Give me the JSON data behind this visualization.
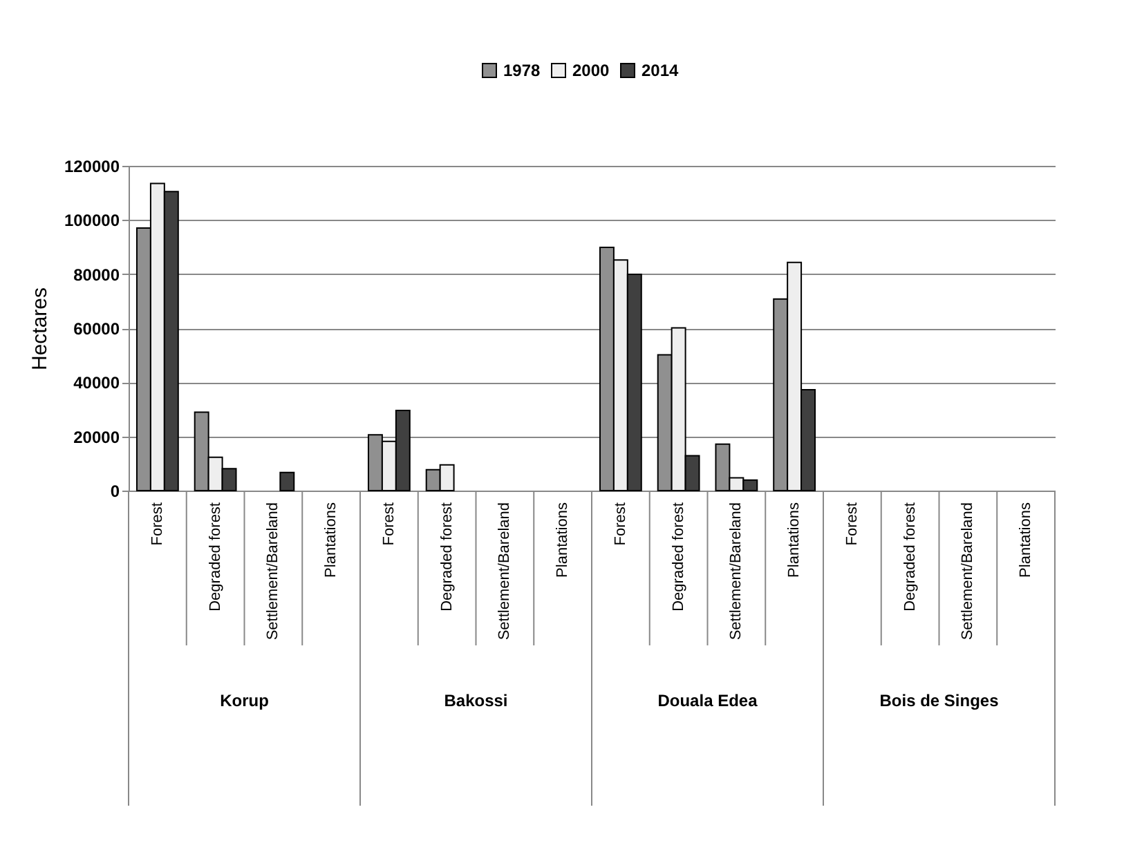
{
  "chart_data": {
    "type": "bar",
    "ylabel": "Hectares",
    "categories": [
      "Forest",
      "Degraded forest",
      "Settlement/Bareland",
      "Plantations",
      "Forest",
      "Degraded forest",
      "Settlement/Bareland",
      "Plantations",
      "Forest",
      "Degraded forest",
      "Settlement/Bareland",
      "Plantations",
      "Forest",
      "Degraded forest",
      "Settlement/Bareland",
      "Plantations"
    ],
    "series": [
      {
        "name": "1978",
        "color": "#909090",
        "values": [
          97000,
          29000,
          null,
          null,
          20600,
          7700,
          null,
          null,
          89900,
          50200,
          17200,
          70800,
          null,
          null,
          null,
          null
        ]
      },
      {
        "name": "2000",
        "color": "#eeeeee",
        "values": [
          113500,
          12300,
          null,
          null,
          18200,
          9500,
          null,
          null,
          85200,
          60100,
          4700,
          84300,
          null,
          null,
          null,
          null
        ]
      },
      {
        "name": "2014",
        "color": "#404040",
        "values": [
          110500,
          8100,
          6700,
          null,
          29600,
          null,
          null,
          null,
          79900,
          12900,
          3900,
          37300,
          null,
          null,
          null,
          null
        ]
      }
    ],
    "annotations": [
      "Korup",
      "Bakossi",
      "Douala Edea",
      "Bois de Singes"
    ],
    "ylim": [
      0,
      120000
    ],
    "yticks": [
      0,
      20000,
      40000,
      60000,
      80000,
      100000,
      120000
    ],
    "grid": "y",
    "legend": "top"
  }
}
